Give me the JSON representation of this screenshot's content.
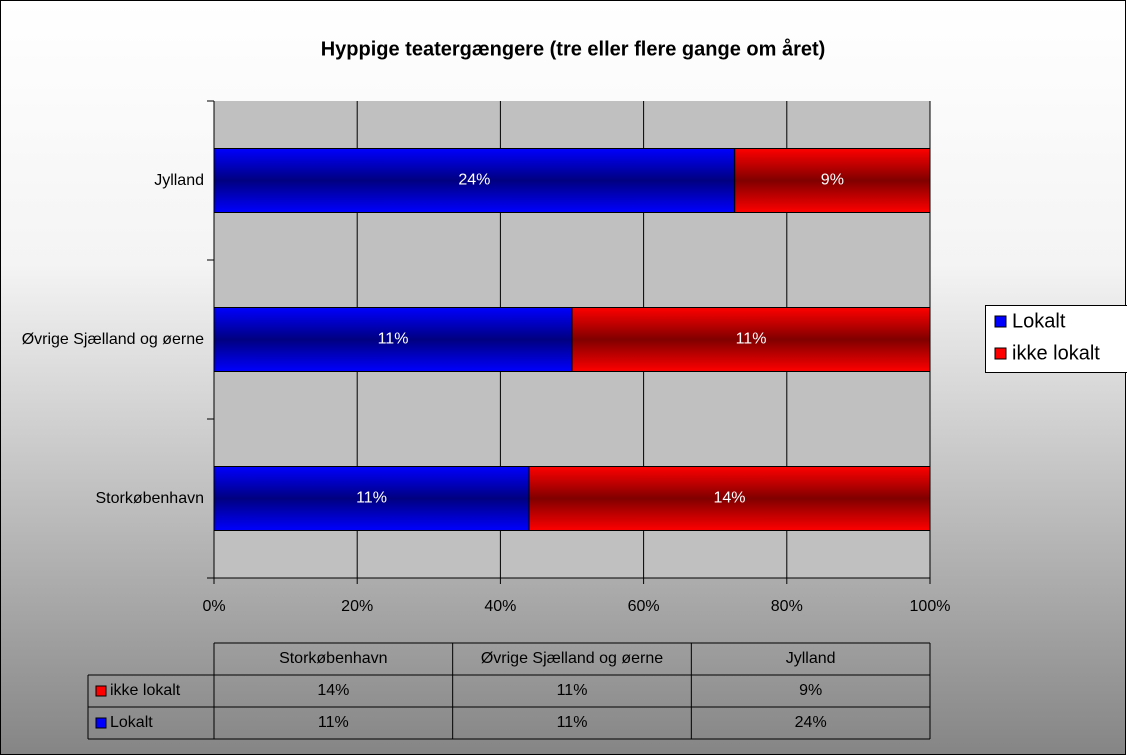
{
  "chart_data": {
    "type": "bar",
    "orientation": "horizontal",
    "stacking": "percent",
    "title": "Hyppige teatergængere (tre eller flere gange om året)",
    "categories": [
      "Storkøbenhavn",
      "Øvrige Sjælland og øerne",
      "Jylland"
    ],
    "series": [
      {
        "name": "Lokalt",
        "color": "#0000ff",
        "values": [
          11,
          11,
          24
        ],
        "value_labels": [
          "11%",
          "11%",
          "24%"
        ]
      },
      {
        "name": "ikke lokalt",
        "color": "#ff0000",
        "values": [
          14,
          11,
          9
        ],
        "value_labels": [
          "14%",
          "11%",
          "9%"
        ]
      }
    ],
    "xlim": [
      0,
      100
    ],
    "xticks": [
      {
        "value": 0,
        "label": "0%"
      },
      {
        "value": 20,
        "label": "20%"
      },
      {
        "value": 40,
        "label": "40%"
      },
      {
        "value": 60,
        "label": "60%"
      },
      {
        "value": 80,
        "label": "80%"
      },
      {
        "value": 100,
        "label": "100%"
      }
    ],
    "grid": true,
    "legend": "right",
    "data_table": true
  }
}
